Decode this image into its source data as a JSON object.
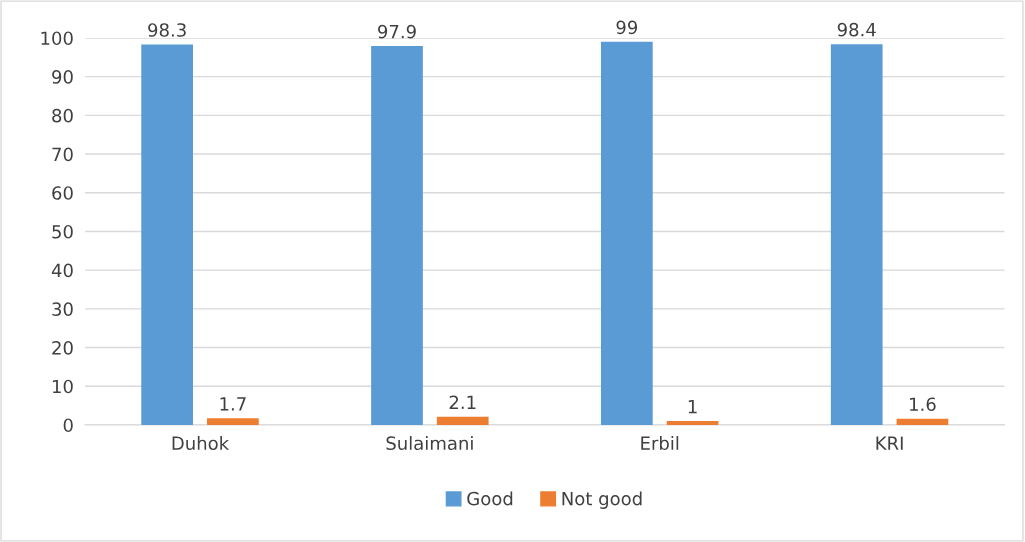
{
  "chart_data": {
    "type": "bar",
    "categories": [
      "Duhok",
      "Sulaimani",
      "Erbil",
      "KRI"
    ],
    "series": [
      {
        "name": "Good",
        "color": "#5b9bd5",
        "values": [
          98.3,
          97.9,
          99,
          98.4
        ]
      },
      {
        "name": "Not good",
        "color": "#ed7d31",
        "values": [
          1.7,
          2.1,
          1,
          1.6
        ]
      }
    ],
    "ylim": [
      0,
      100
    ],
    "yticks": [
      0,
      10,
      20,
      30,
      40,
      50,
      60,
      70,
      80,
      90,
      100
    ],
    "grid": "y",
    "legend": "bottom",
    "data_labels": true
  }
}
